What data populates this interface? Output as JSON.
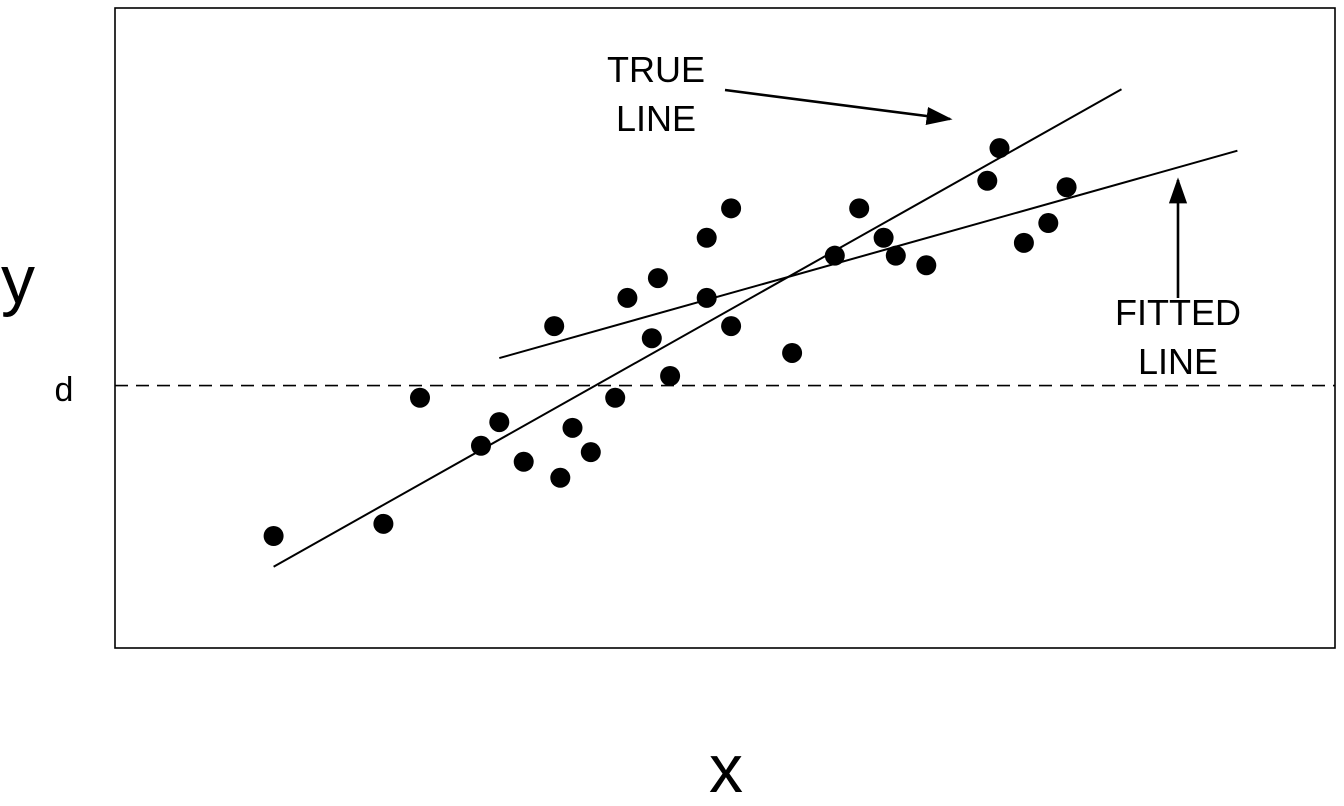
{
  "chart_data": {
    "type": "scatter",
    "xlabel": "x",
    "ylabel": "y",
    "reference_line_label": "d",
    "axis_ticks": false,
    "grid": false,
    "x_range": [
      0,
      100
    ],
    "y_range": [
      0,
      100
    ],
    "reference_y": 41,
    "points": [
      {
        "x": 13.0,
        "y": 17.5
      },
      {
        "x": 22.0,
        "y": 19.4
      },
      {
        "x": 25.0,
        "y": 39.1
      },
      {
        "x": 30.0,
        "y": 31.6
      },
      {
        "x": 31.5,
        "y": 35.3
      },
      {
        "x": 33.5,
        "y": 29.1
      },
      {
        "x": 36.0,
        "y": 50.3
      },
      {
        "x": 36.5,
        "y": 26.6
      },
      {
        "x": 37.5,
        "y": 34.4
      },
      {
        "x": 39.0,
        "y": 30.6
      },
      {
        "x": 41.0,
        "y": 39.1
      },
      {
        "x": 42.0,
        "y": 54.7
      },
      {
        "x": 44.0,
        "y": 48.4
      },
      {
        "x": 44.5,
        "y": 57.8
      },
      {
        "x": 45.5,
        "y": 42.5
      },
      {
        "x": 48.5,
        "y": 54.7
      },
      {
        "x": 48.5,
        "y": 64.1
      },
      {
        "x": 50.5,
        "y": 50.3
      },
      {
        "x": 50.5,
        "y": 68.7
      },
      {
        "x": 55.5,
        "y": 46.1
      },
      {
        "x": 59.0,
        "y": 61.3
      },
      {
        "x": 61.0,
        "y": 68.7
      },
      {
        "x": 63.0,
        "y": 64.1
      },
      {
        "x": 64.0,
        "y": 61.3
      },
      {
        "x": 66.5,
        "y": 59.8
      },
      {
        "x": 71.5,
        "y": 73.0
      },
      {
        "x": 72.5,
        "y": 78.1
      },
      {
        "x": 74.5,
        "y": 63.3
      },
      {
        "x": 76.5,
        "y": 66.4
      },
      {
        "x": 78.0,
        "y": 72.0
      }
    ],
    "lines": [
      {
        "name": "TRUE LINE",
        "x": [
          13.0,
          82.5
        ],
        "y": [
          12.7,
          87.3
        ]
      },
      {
        "name": "FITTED LINE",
        "x": [
          31.5,
          92.0
        ],
        "y": [
          45.3,
          77.7
        ]
      }
    ],
    "annotations": [
      {
        "text_lines": [
          "TRUE",
          "LINE"
        ],
        "arrow_to": "TRUE LINE"
      },
      {
        "text_lines": [
          "FITTED",
          "LINE"
        ],
        "arrow_to": "FITTED LINE"
      }
    ]
  }
}
